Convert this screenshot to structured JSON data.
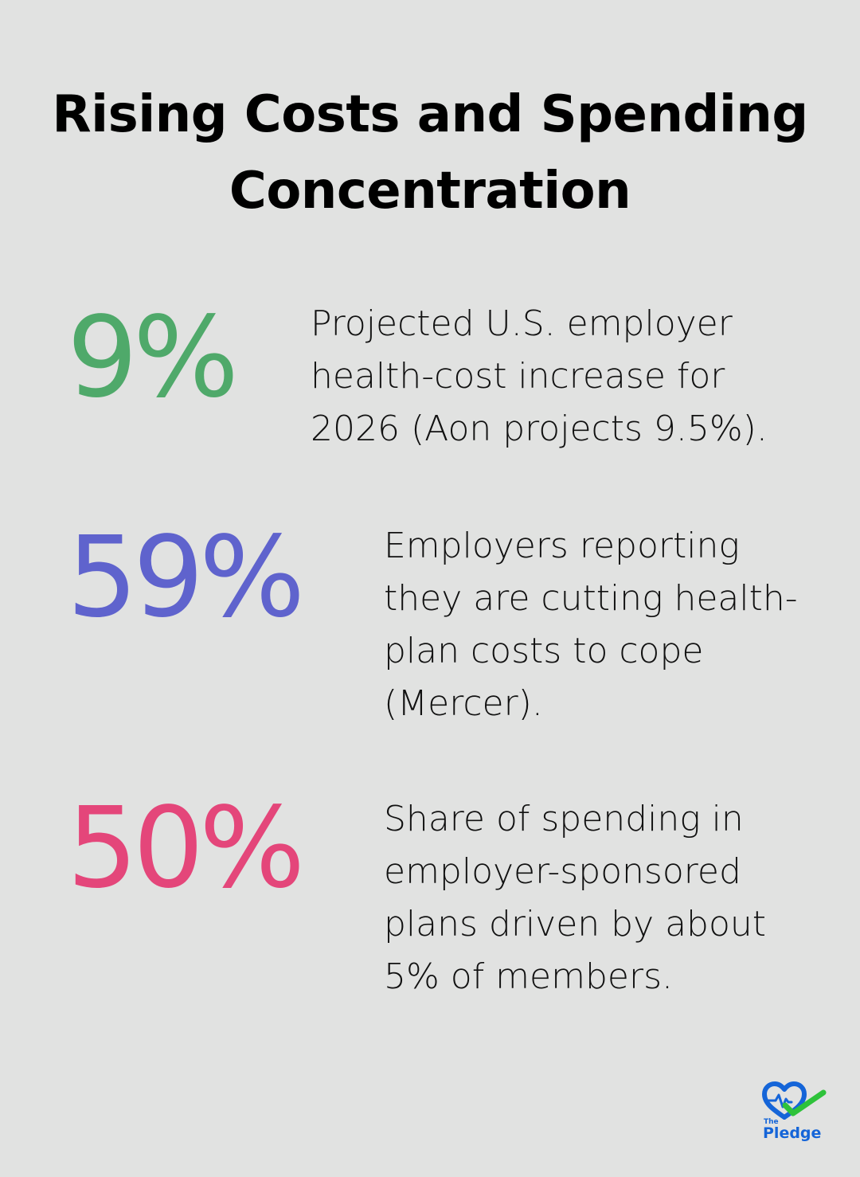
{
  "title": "Rising Costs and Spending Concentration",
  "stats": [
    {
      "value": "9%",
      "description": "Projected U.S. employer health-cost increase for 2026 (Aon projects 9.5%).",
      "color": "#4fa96a"
    },
    {
      "value": "59%",
      "description": "Employers reporting they are cutting health-plan costs to cope (Mercer).",
      "color": "#5f63cd"
    },
    {
      "value": "50%",
      "description": "Share of spending in employer-sponsored plans driven by about 5% of members.",
      "color": "#e4467a"
    }
  ],
  "logo": {
    "small_text": "The",
    "big_text": "Pledge",
    "blue": "#1565d8",
    "green": "#2ec23a"
  },
  "colors": {
    "background": "#e1e2e1",
    "title": "#000000",
    "text": "#111111"
  }
}
